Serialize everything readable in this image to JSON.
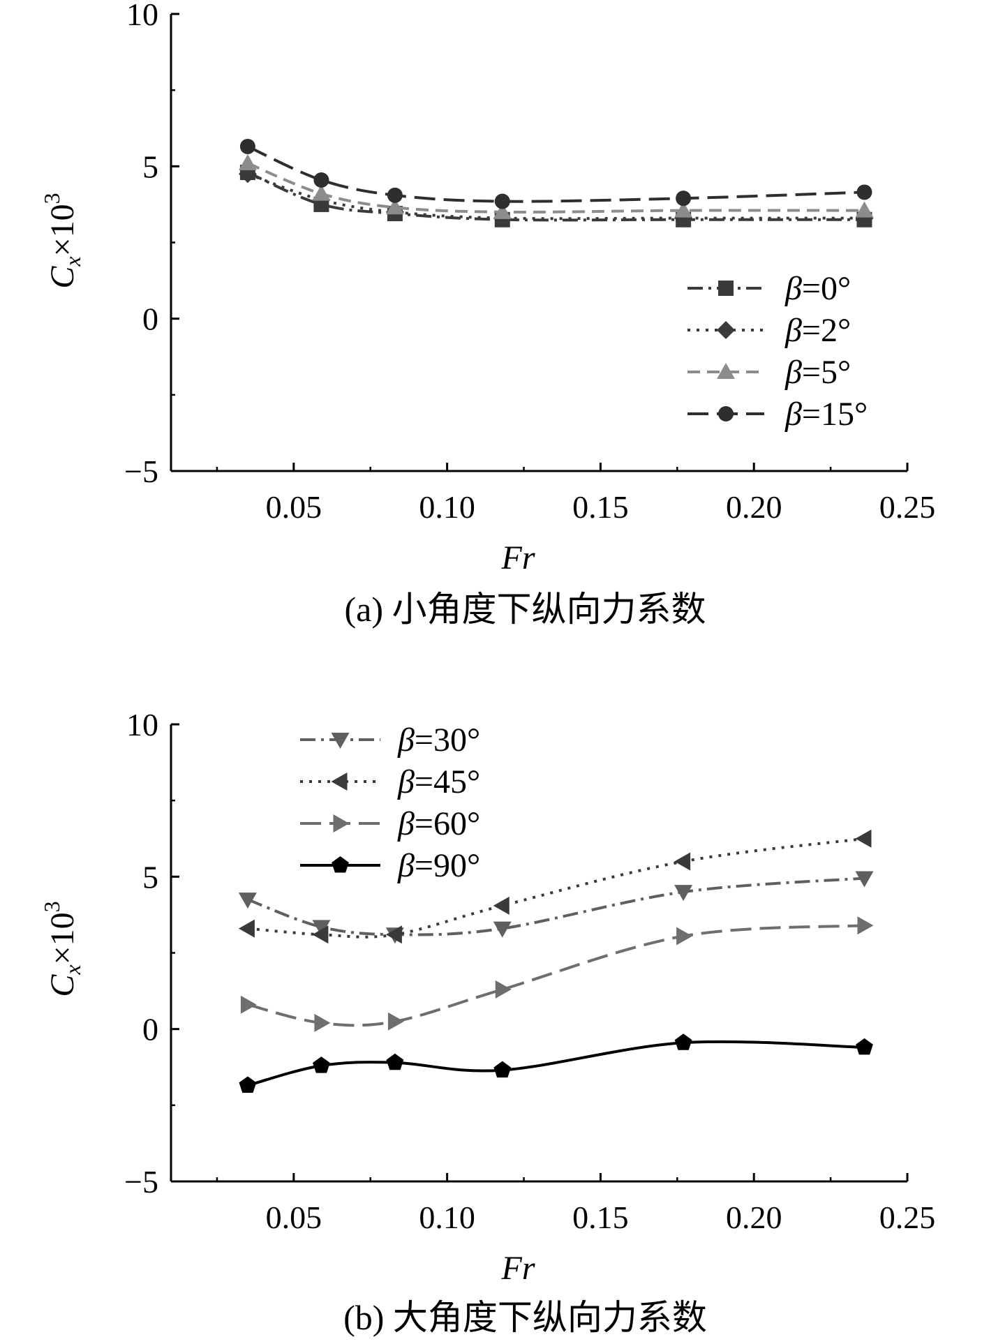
{
  "chart_data": [
    {
      "type": "line",
      "caption": "(a) 小角度下纵向力系数",
      "xlabel": "Fr",
      "ylabel": "C_x×10^3",
      "ylabel_parts": {
        "base": "C",
        "sub": "x",
        "times": "×10",
        "sup": "3"
      },
      "xlim": [
        0.01,
        0.25
      ],
      "ylim": [
        -5,
        10
      ],
      "xticks": [
        0.05,
        0.1,
        0.15,
        0.2,
        0.25
      ],
      "xtick_labels": [
        "0.05",
        "0.10",
        "0.15",
        "0.20",
        "0.25"
      ],
      "yticks": [
        -5,
        0,
        5,
        10
      ],
      "ytick_labels": [
        "−5",
        "0",
        "5",
        "10"
      ],
      "legend_position": "right-middle",
      "x": [
        0.035,
        0.059,
        0.083,
        0.118,
        0.177,
        0.236
      ],
      "series": [
        {
          "name": "β=0°",
          "label_greek": "β",
          "label_rest": "=0°",
          "marker": "square",
          "dash": "dashdot",
          "color": "#3a3a3a",
          "values": [
            4.8,
            3.75,
            3.45,
            3.25,
            3.25,
            3.25
          ]
        },
        {
          "name": "β=2°",
          "label_greek": "β",
          "label_rest": "=2°",
          "marker": "diamond",
          "dash": "dotted",
          "color": "#3a3a3a",
          "values": [
            4.75,
            3.9,
            3.5,
            3.3,
            3.3,
            3.3
          ]
        },
        {
          "name": "β=5°",
          "label_greek": "β",
          "label_rest": "=5°",
          "marker": "triangle",
          "dash": "dashed",
          "color": "#8c8c8c",
          "values": [
            5.1,
            4.1,
            3.65,
            3.5,
            3.55,
            3.55
          ]
        },
        {
          "name": "β=15°",
          "label_greek": "β",
          "label_rest": "=15°",
          "marker": "circle",
          "dash": "longdash",
          "color": "#2e2e2e",
          "values": [
            5.65,
            4.55,
            4.05,
            3.85,
            3.95,
            4.15
          ]
        }
      ]
    },
    {
      "type": "line",
      "caption": "(b) 大角度下纵向力系数",
      "xlabel": "Fr",
      "ylabel": "C_x×10^3",
      "ylabel_parts": {
        "base": "C",
        "sub": "x",
        "times": "×10",
        "sup": "3"
      },
      "xlim": [
        0.01,
        0.25
      ],
      "ylim": [
        -5,
        10
      ],
      "xticks": [
        0.05,
        0.1,
        0.15,
        0.2,
        0.25
      ],
      "xtick_labels": [
        "0.05",
        "0.10",
        "0.15",
        "0.20",
        "0.25"
      ],
      "yticks": [
        -5,
        0,
        5,
        10
      ],
      "ytick_labels": [
        "−5",
        "0",
        "5",
        "10"
      ],
      "legend_position": "top-left",
      "x": [
        0.035,
        0.059,
        0.083,
        0.118,
        0.177,
        0.236
      ],
      "series": [
        {
          "name": "β=30°",
          "label_greek": "β",
          "label_rest": "=30°",
          "marker": "triangle-down",
          "dash": "dashdot",
          "color": "#5f5f5f",
          "values": [
            4.25,
            3.35,
            3.1,
            3.3,
            4.5,
            4.95
          ]
        },
        {
          "name": "β=45°",
          "label_greek": "β",
          "label_rest": "=45°",
          "marker": "triangle-left",
          "dash": "dotted",
          "color": "#3a3a3a",
          "values": [
            3.3,
            3.1,
            3.1,
            4.05,
            5.5,
            6.25
          ]
        },
        {
          "name": "β=60°",
          "label_greek": "β",
          "label_rest": "=60°",
          "marker": "triangle-right",
          "dash": "longdash",
          "color": "#6e6e6e",
          "values": [
            0.8,
            0.2,
            0.25,
            1.3,
            3.05,
            3.4
          ]
        },
        {
          "name": "β=90°",
          "label_greek": "β",
          "label_rest": "=90°",
          "marker": "pentagon",
          "dash": "solid",
          "color": "#000000",
          "values": [
            -1.85,
            -1.2,
            -1.1,
            -1.35,
            -0.45,
            -0.6
          ]
        }
      ]
    }
  ]
}
